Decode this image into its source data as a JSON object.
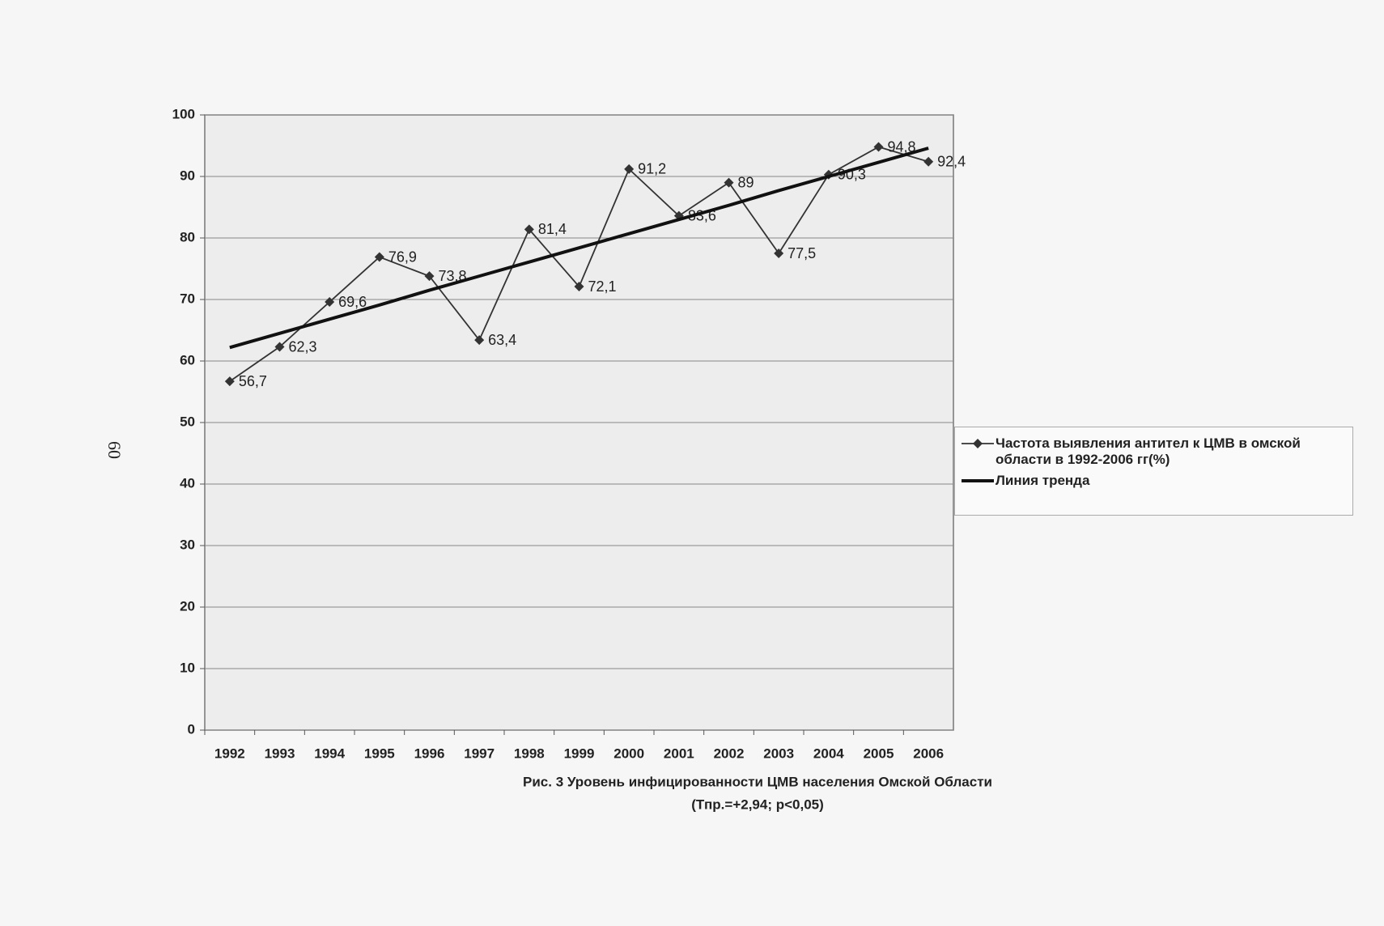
{
  "chart_data": {
    "type": "line",
    "page_number": "60",
    "caption": "Рис. 3 Уровень инфицированности ЦМВ населения Омской Области",
    "subcaption": "(Тпр.=+2,94; p<0,05)",
    "categories": [
      "1992",
      "1993",
      "1994",
      "1995",
      "1996",
      "1997",
      "1998",
      "1999",
      "2000",
      "2001",
      "2002",
      "2003",
      "2004",
      "2005",
      "2006"
    ],
    "series": [
      {
        "name": "Частота выявления антител к ЦМВ в омской области в 1992-2006 гг(%)",
        "color": "#333333",
        "marker": "diamond",
        "values": [
          56.7,
          62.3,
          69.6,
          76.9,
          73.8,
          63.4,
          81.4,
          72.1,
          91.2,
          83.6,
          89,
          77.5,
          90.3,
          94.8,
          92.4
        ],
        "value_labels": [
          "56,7",
          "62,3",
          "69,6",
          "76,9",
          "73,8",
          "63,4",
          "81,4",
          "72,1",
          "91,2",
          "83,6",
          "89",
          "77,5",
          "90,3",
          "94,8",
          "92,4"
        ]
      },
      {
        "name": "Линия тренда",
        "color": "#111111",
        "values": [
          62.2,
          64.5,
          66.8,
          69.1,
          71.5,
          73.8,
          76.1,
          78.4,
          80.7,
          83.0,
          85.3,
          87.7,
          90.0,
          92.3,
          94.6
        ]
      }
    ],
    "ylim": [
      0,
      100
    ],
    "yticks": [
      0,
      10,
      20,
      30,
      40,
      50,
      60,
      70,
      80,
      90,
      100
    ],
    "grid": true,
    "legend": "right"
  }
}
